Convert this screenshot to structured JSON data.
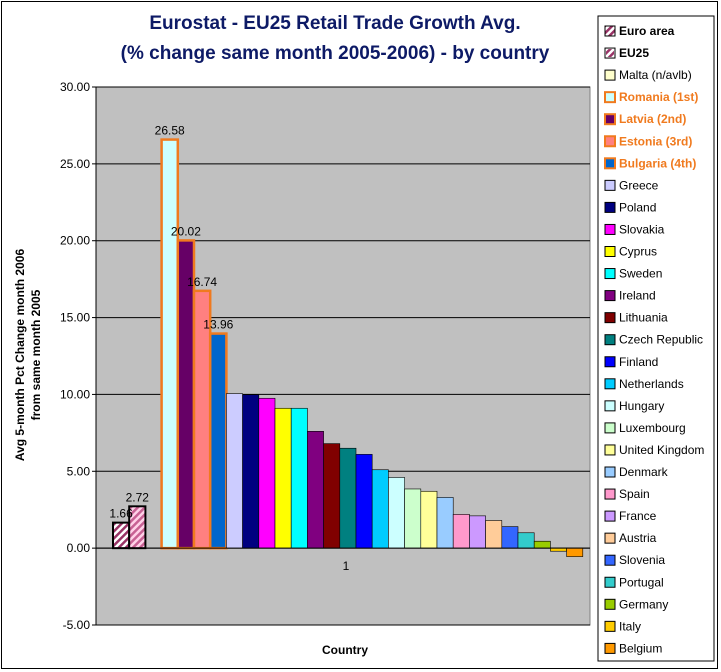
{
  "chart_data": {
    "type": "bar",
    "title_line1": "Eurostat - EU25 Retail Trade Growth Avg.",
    "title_line2": "(% change same month 2005-2006) - by country",
    "xlabel": "Country",
    "ylabel_line1": "Avg 5-month Pct Change month 2006",
    "ylabel_line2": "from same month 2005",
    "categories": [
      "1"
    ],
    "ylim": [
      -5,
      30
    ],
    "yticks": [
      "-5.00",
      "0.00",
      "5.00",
      "10.00",
      "15.00",
      "20.00",
      "25.00",
      "30.00"
    ],
    "grid": true,
    "legend_position": "right",
    "plot_background": "#c0c0c0",
    "series": [
      {
        "name": "Euro area",
        "value": 1.66,
        "label": "1.66",
        "color": "#993366",
        "pattern": "hatch",
        "legend_style": "bold"
      },
      {
        "name": "EU25",
        "value": 2.72,
        "label": "2.72",
        "color": "#ff99cc",
        "pattern": "hatch",
        "legend_style": "bold"
      },
      {
        "name": "Malta (n/avlb)",
        "value": 0,
        "color": "#ffffcc"
      },
      {
        "name": "Romania (1st)",
        "value": 26.58,
        "label": "26.58",
        "color": "#ccffff",
        "border": "#f07a1e",
        "legend_style": "orange"
      },
      {
        "name": "Latvia (2nd)",
        "value": 20.02,
        "label": "20.02",
        "color": "#660066",
        "border": "#f07a1e",
        "legend_style": "orange"
      },
      {
        "name": "Estonia (3rd)",
        "value": 16.74,
        "label": "16.74",
        "color": "#ff8080",
        "border": "#f07a1e",
        "legend_style": "orange"
      },
      {
        "name": "Bulgaria (4th)",
        "value": 13.96,
        "label": "13.96",
        "color": "#0066cc",
        "border": "#f07a1e",
        "legend_style": "orange"
      },
      {
        "name": "Greece",
        "value": 10.05,
        "color": "#ccccff"
      },
      {
        "name": "Poland",
        "value": 9.98,
        "color": "#000080"
      },
      {
        "name": "Slovakia",
        "value": 9.75,
        "color": "#ff00ff"
      },
      {
        "name": "Cyprus",
        "value": 9.1,
        "color": "#ffff00"
      },
      {
        "name": "Sweden",
        "value": 9.1,
        "color": "#00ffff"
      },
      {
        "name": "Ireland",
        "value": 7.6,
        "color": "#800080"
      },
      {
        "name": "Lithuania",
        "value": 6.8,
        "color": "#800000"
      },
      {
        "name": "Czech Republic",
        "value": 6.5,
        "color": "#008080"
      },
      {
        "name": "Finland",
        "value": 6.1,
        "color": "#0000ff"
      },
      {
        "name": "Netherlands",
        "value": 5.1,
        "color": "#00ccff"
      },
      {
        "name": "Hungary",
        "value": 4.6,
        "color": "#ccffff"
      },
      {
        "name": "Luxembourg",
        "value": 3.85,
        "color": "#ccffcc"
      },
      {
        "name": "United Kingdom",
        "value": 3.7,
        "color": "#ffff99"
      },
      {
        "name": "Denmark",
        "value": 3.3,
        "color": "#99ccff"
      },
      {
        "name": "Spain",
        "value": 2.2,
        "color": "#ff99cc"
      },
      {
        "name": "France",
        "value": 2.1,
        "color": "#cc99ff"
      },
      {
        "name": "Austria",
        "value": 1.8,
        "color": "#ffcc99"
      },
      {
        "name": "Slovenia",
        "value": 1.4,
        "color": "#3366ff"
      },
      {
        "name": "Portugal",
        "value": 1.0,
        "color": "#33cccc"
      },
      {
        "name": "Germany",
        "value": 0.45,
        "color": "#99cc00"
      },
      {
        "name": "Italy",
        "value": -0.2,
        "color": "#ffcc00"
      },
      {
        "name": "Belgium",
        "value": -0.55,
        "color": "#ff9900"
      }
    ]
  }
}
